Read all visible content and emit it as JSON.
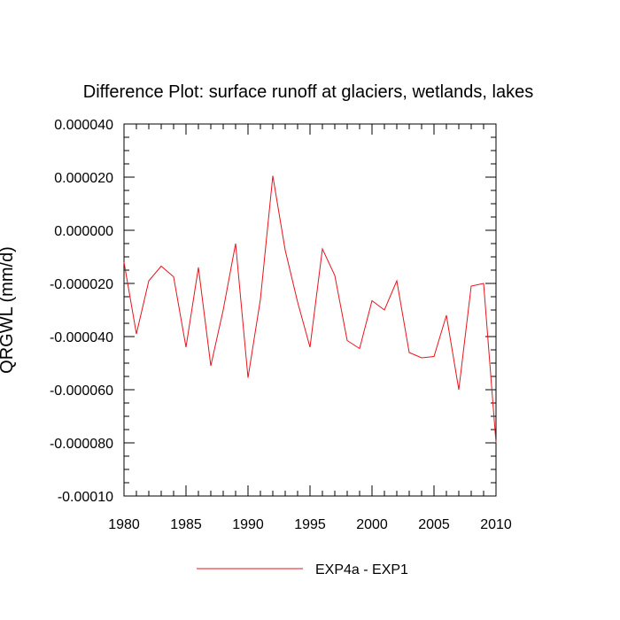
{
  "chart_data": {
    "type": "line",
    "title": "Difference Plot: surface runoff at glaciers, wetlands, lakes",
    "xlabel": "",
    "ylabel": "QRGWL  (mm/d)",
    "xlim": [
      1980,
      2010
    ],
    "ylim": [
      -0.0001,
      4e-05
    ],
    "x_ticks": [
      1980,
      1985,
      1990,
      1995,
      2000,
      2005,
      2010
    ],
    "x_tick_labels": [
      "1980",
      "1985",
      "1990",
      "1995",
      "2000",
      "2005",
      "2010"
    ],
    "y_ticks": [
      4e-05,
      2e-05,
      0.0,
      -2e-05,
      -4e-05,
      -6e-05,
      -8e-05,
      -0.0001
    ],
    "y_tick_labels": [
      "0.000040",
      "0.000020",
      "0.000000",
      "-0.000020",
      "-0.000040",
      "-0.000060",
      "-0.000080",
      "-0.00010"
    ],
    "grid": false,
    "legend_position": "bottom-center",
    "x": [
      1980,
      1981,
      1982,
      1983,
      1984,
      1985,
      1986,
      1987,
      1988,
      1989,
      1990,
      1991,
      1992,
      1993,
      1994,
      1995,
      1996,
      1997,
      1998,
      1999,
      2000,
      2001,
      2002,
      2003,
      2004,
      2005,
      2006,
      2007,
      2008,
      2009,
      2010
    ],
    "series": [
      {
        "name": "EXP4a - EXP1",
        "color": "#e8141c",
        "values": [
          -1.2e-05,
          -3.9e-05,
          -1.9e-05,
          -1.35e-05,
          -1.75e-05,
          -4.4e-05,
          -1.4e-05,
          -5.1e-05,
          -3e-05,
          -5e-06,
          -5.55e-05,
          -2.6e-05,
          2.05e-05,
          -7.5e-06,
          -2.7e-05,
          -4.4e-05,
          -7e-06,
          -1.7e-05,
          -4.15e-05,
          -4.45e-05,
          -2.65e-05,
          -3e-05,
          -1.9e-05,
          -4.6e-05,
          -4.8e-05,
          -4.75e-05,
          -3.2e-05,
          -6e-05,
          -2.1e-05,
          -2e-05,
          -8e-05
        ]
      }
    ]
  }
}
